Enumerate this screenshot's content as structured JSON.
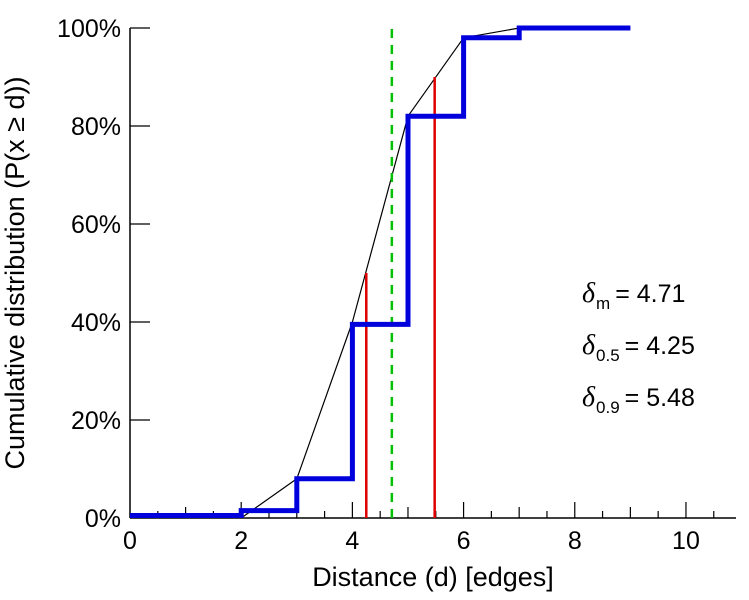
{
  "chart_data": {
    "type": "line",
    "title": "",
    "xlabel": "Distance (d) [edges]",
    "ylabel": "Cumulative distribution (P(x  ≥  d))",
    "xlim": [
      0,
      10.9
    ],
    "ylim": [
      0,
      100
    ],
    "x_major_ticks": [
      0,
      2,
      4,
      6,
      8,
      10
    ],
    "x_minor_tick_step": 0.5,
    "y_ticks": [
      0,
      20,
      40,
      60,
      80,
      100
    ],
    "y_tick_suffix": "%",
    "grid": false,
    "legend": "none",
    "series": [
      {
        "name": "empirical-cdf",
        "style": "step",
        "color": "#0000dd",
        "width": 5,
        "x": [
          0,
          2,
          2,
          3,
          3,
          4,
          4,
          5,
          5,
          6,
          6,
          7,
          7,
          9
        ],
        "y": [
          0.5,
          0.5,
          1.5,
          1.5,
          8,
          8,
          39.5,
          39.5,
          82,
          82,
          98,
          98,
          100,
          100
        ]
      },
      {
        "name": "linear-interpolation",
        "style": "line",
        "color": "#000000",
        "width": 1.2,
        "x": [
          2,
          3,
          4,
          5,
          6,
          7,
          9
        ],
        "y": [
          0,
          8,
          40,
          82,
          98,
          100,
          100
        ]
      }
    ],
    "markers": [
      {
        "name": "mean-line",
        "stat": "mean",
        "x": 4.71,
        "y0": 0,
        "y1": 100,
        "color": "#00c000",
        "dash": "9,7",
        "width": 2.5
      },
      {
        "name": "median-line",
        "stat": "median",
        "x": 4.25,
        "y0": 0,
        "y1": 50,
        "color": "#dd0000",
        "dash": "",
        "width": 2.5
      },
      {
        "name": "p90-line",
        "stat": "90th-percentile",
        "x": 5.48,
        "y0": 0,
        "y1": 90,
        "color": "#dd0000",
        "dash": "",
        "width": 2.5
      }
    ]
  },
  "annotations": [
    {
      "symbol": "δ",
      "sub": "m",
      "value": "= 4.71"
    },
    {
      "symbol": "δ",
      "sub": "0.5",
      "value": "= 4.25"
    },
    {
      "symbol": "δ",
      "sub": "0.9",
      "value": "= 5.48"
    }
  ]
}
